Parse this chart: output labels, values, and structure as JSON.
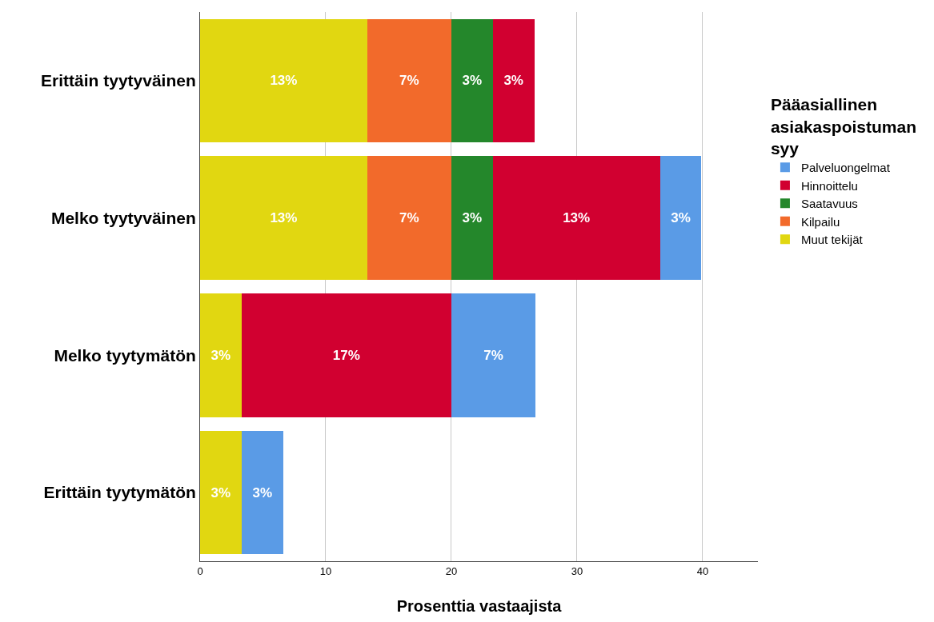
{
  "chart_data": {
    "type": "bar",
    "orientation": "horizontal",
    "stacked": true,
    "categories": [
      "Erittäin tyytyväinen",
      "Melko tyytyväinen",
      "Melko tyytymätön",
      "Erittäin tyytymätön"
    ],
    "xlabel": "Prosenttia vastaajista",
    "legend_title": "Pääasiallinen asiakaspoistuman syy",
    "xlim": [
      0,
      44.4
    ],
    "xticks": [
      0,
      10,
      20,
      30,
      40
    ],
    "grid": "x",
    "legend": "right",
    "series": [
      {
        "name": "Muut tekijät",
        "color": "#e1d711",
        "values": [
          13.3,
          13.3,
          3.3,
          3.3
        ],
        "value_labels": [
          "13%",
          "13%",
          "3%",
          "3%"
        ]
      },
      {
        "name": "Kilpailu",
        "color": "#f26a2b",
        "values": [
          6.7,
          6.7,
          null,
          null
        ],
        "value_labels": [
          "7%",
          "7%",
          null,
          null
        ]
      },
      {
        "name": "Saatavuus",
        "color": "#24872b",
        "values": [
          3.3,
          3.3,
          null,
          null
        ],
        "value_labels": [
          "3%",
          "3%",
          null,
          null
        ]
      },
      {
        "name": "Hinnoittelu",
        "color": "#d10030",
        "values": [
          3.3,
          13.3,
          16.7,
          null
        ],
        "value_labels": [
          "3%",
          "13%",
          "17%",
          null
        ]
      },
      {
        "name": "Palveluongelmat",
        "color": "#5a9be6",
        "values": [
          null,
          3.3,
          6.7,
          3.3
        ],
        "value_labels": [
          null,
          "3%",
          "7%",
          "3%"
        ]
      }
    ]
  }
}
